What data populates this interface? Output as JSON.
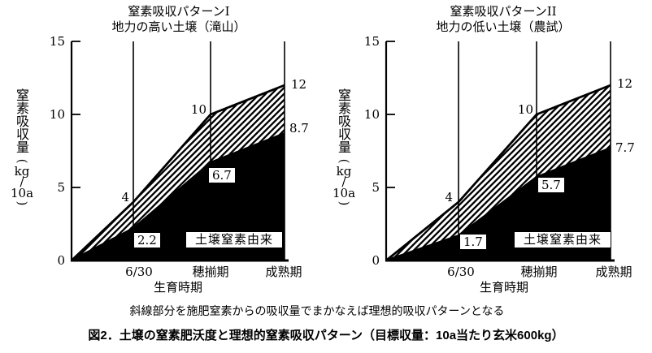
{
  "colors": {
    "ink": "#000000",
    "soil_area": "#000000",
    "background": "#ffffff"
  },
  "figure": {
    "note": "斜線部分を施肥窒素からの吸収量でまかなえば理想的吸収パターンとなる",
    "caption": "図2．土壌の窒素肥沃度と理想的窒素吸収パターン（目標収量：10a当たり玄米600kg）"
  },
  "y_axis": {
    "label": "窒素吸収量",
    "unit_open": "(",
    "unit_kg": "kg",
    "unit_slash": "/",
    "unit_denom": "10a",
    "unit_close": ")",
    "ticks": [
      "15",
      "10",
      "5",
      "0"
    ]
  },
  "x_axis": {
    "label": "生育時期",
    "categories": [
      "6/30",
      "穂揃期",
      "成熟期"
    ]
  },
  "chart_data": [
    {
      "type": "area",
      "title": "窒素吸収パターンI",
      "subtitle": "地力の高い土壌（滝山）",
      "xlabel": "生育時期",
      "ylabel": "窒素吸収量（kg/10a）",
      "ylim": [
        0,
        15
      ],
      "grid": false,
      "categories": [
        "6/30",
        "穂揃期",
        "成熟期"
      ],
      "values_include_origin_zero": true,
      "series": [
        {
          "id": "total-ideal-absorption",
          "fill": "hatch",
          "values": [
            0,
            4,
            10,
            12
          ]
        },
        {
          "id": "soil-nitrogen-derived",
          "fill": "black",
          "label": "土壌窒素由来",
          "values": [
            0,
            2.2,
            6.7,
            8.7
          ]
        }
      ],
      "value_labels": {
        "total": [
          "4",
          "10",
          "12"
        ],
        "soil": [
          "2.2",
          "6.7",
          "8.7"
        ]
      },
      "area_label": "土壌窒素由来"
    },
    {
      "type": "area",
      "title": "窒素吸収パターンII",
      "subtitle": "地力の低い土壌（農試）",
      "xlabel": "生育時期",
      "ylabel": "窒素吸収量（kg/10a）",
      "ylim": [
        0,
        15
      ],
      "grid": false,
      "categories": [
        "6/30",
        "穂揃期",
        "成熟期"
      ],
      "values_include_origin_zero": true,
      "series": [
        {
          "id": "total-ideal-absorption",
          "fill": "hatch",
          "values": [
            0,
            4,
            10,
            12
          ]
        },
        {
          "id": "soil-nitrogen-derived",
          "fill": "black",
          "label": "土壌窒素由来",
          "values": [
            0,
            1.7,
            5.7,
            7.7
          ]
        }
      ],
      "value_labels": {
        "total": [
          "4",
          "10",
          "12"
        ],
        "soil": [
          "1.7",
          "5.7",
          "7.7"
        ]
      },
      "area_label": "土壌窒素由来"
    }
  ]
}
